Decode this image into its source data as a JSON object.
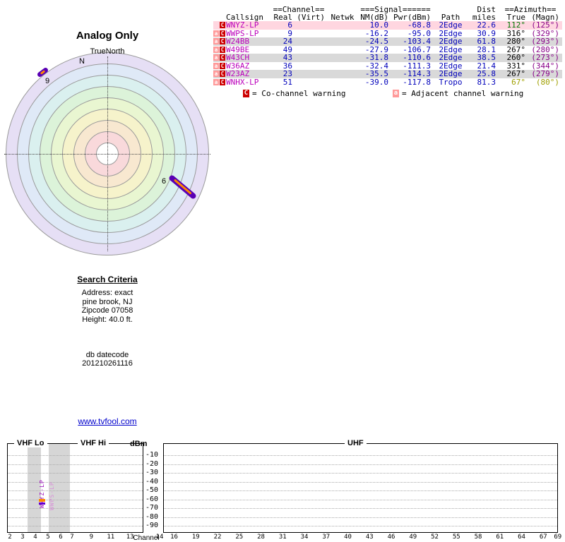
{
  "colors": {
    "value_blue": "#0000bb",
    "callsign_magenta": "#bb00bb",
    "true_green": "#007700",
    "magn_purple": "#880088",
    "tropo_olive": "#9f9f00",
    "highlight_pink": "#ffd6e0",
    "badge_c_red": "#cc0000",
    "badge_a_pink": "#ff9999",
    "link_blue": "#0000cc"
  },
  "radar": {
    "title": "Analog Only",
    "subtitle": "TrueNorth",
    "north_label": "N",
    "markers": [
      {
        "label": "9"
      },
      {
        "label": "6"
      }
    ]
  },
  "table": {
    "group_headers": {
      "channel": "==Channel==",
      "signal": "===Signal======",
      "dist": "Dist",
      "azimuth": "==Azimuth=="
    },
    "columns": {
      "callsign": "Callsign",
      "real": "Real",
      "virt": "(Virt)",
      "netwk": "Netwk",
      "nm": "NM(dB)",
      "pwr": "Pwr(dBm)",
      "path": "Path",
      "miles": "miles",
      "true": "True",
      "magn": "(Magn)"
    },
    "rows": [
      {
        "badges": [
          "C"
        ],
        "callsign": "WNYZ-LP",
        "real": "6",
        "virt": "",
        "netwk": "",
        "nm": "10.0",
        "pwr": "-68.8",
        "path": "2Edge",
        "miles": "22.6",
        "true": "112°",
        "magn": "(125°)",
        "highlight": true,
        "variant": "strong"
      },
      {
        "badges": [
          "a",
          "C"
        ],
        "callsign": "WWPS-LP",
        "real": "9",
        "virt": "",
        "netwk": "",
        "nm": "-16.2",
        "pwr": "-95.0",
        "path": "2Edge",
        "miles": "30.9",
        "true": "316°",
        "magn": "(329°)",
        "highlight": false,
        "variant": "normal"
      },
      {
        "badges": [
          "a",
          "C"
        ],
        "callsign": "W24BB",
        "real": "24",
        "virt": "",
        "netwk": "",
        "nm": "-24.5",
        "pwr": "-103.4",
        "path": "2Edge",
        "miles": "61.8",
        "true": "280°",
        "magn": "(293°)",
        "highlight": false,
        "variant": "normal"
      },
      {
        "badges": [
          "a",
          "C"
        ],
        "callsign": "W49BE",
        "real": "49",
        "virt": "",
        "netwk": "",
        "nm": "-27.9",
        "pwr": "-106.7",
        "path": "2Edge",
        "miles": "28.1",
        "true": "267°",
        "magn": "(280°)",
        "highlight": false,
        "variant": "normal"
      },
      {
        "badges": [
          "a",
          "C"
        ],
        "callsign": "W43CH",
        "real": "43",
        "virt": "",
        "netwk": "",
        "nm": "-31.8",
        "pwr": "-110.6",
        "path": "2Edge",
        "miles": "38.5",
        "true": "260°",
        "magn": "(273°)",
        "highlight": false,
        "variant": "normal"
      },
      {
        "badges": [
          "a",
          "C"
        ],
        "callsign": "W36AZ",
        "real": "36",
        "virt": "",
        "netwk": "",
        "nm": "-32.4",
        "pwr": "-111.3",
        "path": "2Edge",
        "miles": "21.4",
        "true": "331°",
        "magn": "(344°)",
        "highlight": false,
        "variant": "normal"
      },
      {
        "badges": [
          "a",
          "C"
        ],
        "callsign": "W23AZ",
        "real": "23",
        "virt": "",
        "netwk": "",
        "nm": "-35.5",
        "pwr": "-114.3",
        "path": "2Edge",
        "miles": "25.8",
        "true": "267°",
        "magn": "(279°)",
        "highlight": false,
        "variant": "normal"
      },
      {
        "badges": [
          "a",
          "C"
        ],
        "callsign": "WNHX-LP",
        "real": "51",
        "virt": "",
        "netwk": "",
        "nm": "-39.0",
        "pwr": "-117.8",
        "path": "Tropo",
        "miles": "81.3",
        "true": "67°",
        "magn": "(80°)",
        "highlight": false,
        "variant": "tropo"
      }
    ],
    "legend": [
      {
        "badge": "C",
        "text": "= Co-channel warning"
      },
      {
        "badge": "a",
        "text": "= Adjacent channel warning"
      }
    ]
  },
  "search": {
    "title": "Search Criteria",
    "lines": [
      "Address: exact",
      "pine brook, NJ",
      "Zipcode 07058",
      "Height: 40.0 ft.",
      "",
      "",
      "",
      "db datecode",
      "201210261116"
    ]
  },
  "link": {
    "text": "www.tvfool.com"
  },
  "chart_data": {
    "type": "bar",
    "title": "",
    "xlabel": "Channel",
    "ylabel": "dBm",
    "ylim": [
      -95,
      -5
    ],
    "yticks": [
      "-10",
      "-20",
      "-30",
      "-40",
      "-50",
      "-60",
      "-70",
      "-80",
      "-90"
    ],
    "grid": "dotted-horizontal",
    "sections": [
      {
        "label": "VHF Lo",
        "channels": [
          "2",
          "3",
          "4",
          "5",
          "6"
        ]
      },
      {
        "label": "VHF Hi",
        "channels": [
          "7",
          "9",
          "11",
          "13"
        ]
      },
      {
        "label": "UHF",
        "channels": [
          "14",
          "16",
          "19",
          "22",
          "25",
          "28",
          "31",
          "34",
          "37",
          "40",
          "43",
          "46",
          "49",
          "52",
          "55",
          "58",
          "61",
          "64",
          "67",
          "69"
        ]
      }
    ],
    "signals": [
      {
        "callsign": "WNYZ-LP",
        "channel": 6,
        "pwr_dbm": -68.8
      },
      {
        "callsign": "WWPS-LP",
        "channel": 9,
        "pwr_dbm": -95.0
      }
    ]
  }
}
